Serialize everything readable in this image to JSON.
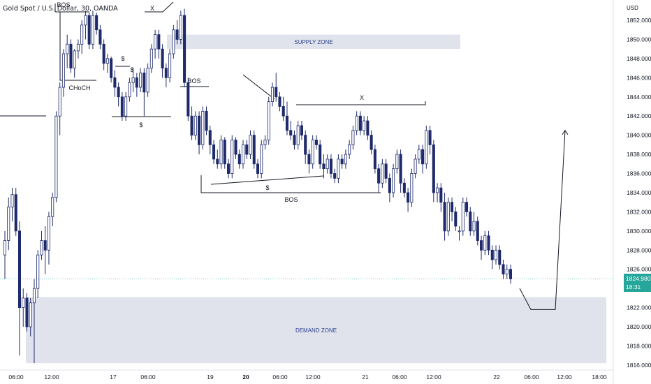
{
  "header": {
    "title": "Gold Spot / U.S. Dollar, 30, OANDA"
  },
  "price_axis": {
    "currency": "USD",
    "last_price": "1824.980",
    "countdown": "18:31"
  },
  "colors": {
    "candle": "#1e2a6b",
    "zone_fill": "#e0e3eb",
    "annotation": "#131722",
    "last_price_line": "#26a69a",
    "zone_text": "#2a3f8f"
  },
  "chart_data": {
    "type": "candlestick",
    "symbol": "Gold Spot / U.S. Dollar",
    "interval": "30",
    "y_axis": {
      "unit": "USD",
      "range": [
        1815.5,
        1853.5
      ],
      "ticks": [
        1816,
        1818,
        1820,
        1822,
        1824,
        1826,
        1828,
        1830,
        1832,
        1834,
        1836,
        1838,
        1840,
        1842,
        1844,
        1846,
        1848,
        1850,
        1852
      ]
    },
    "x_axis": {
      "tick_labels": [
        "06:00",
        "12:00",
        "17",
        "06:00",
        "19",
        "20",
        "06:00",
        "12:00",
        "21",
        "06:00",
        "12:00",
        "22",
        "06:00",
        "12:00",
        "18:00"
      ]
    },
    "zones": [
      {
        "label": "SUPPLY ZONE",
        "low": 1849.0,
        "high": 1850.5
      },
      {
        "label": "DEMAND ZONE",
        "low": 1816.2,
        "high": 1823.1
      }
    ],
    "annotations": [
      {
        "text": "BOS",
        "price": 1853.0
      },
      {
        "text": "X",
        "price": 1852.8
      },
      {
        "text": "$",
        "price": 1847.5
      },
      {
        "text": "CHoCH",
        "price": 1845.5
      },
      {
        "text": "$",
        "price": 1845.2
      },
      {
        "text": "$",
        "price": 1846.0
      },
      {
        "text": "BOS",
        "price": 1841.3
      },
      {
        "text": "X",
        "price": 1843.7
      },
      {
        "text": "$",
        "price": 1835.3
      },
      {
        "text": "BOS",
        "price": 1833.2
      }
    ],
    "projection": [
      1824.0,
      1821.8,
      1821.8,
      1840.5
    ],
    "last_price": 1824.98,
    "candles": [
      [
        1827.5,
        1830.0,
        1825.0,
        1829.0
      ],
      [
        1829.0,
        1833.5,
        1828.0,
        1832.5
      ],
      [
        1832.5,
        1834.5,
        1831.0,
        1833.8
      ],
      [
        1833.8,
        1834.5,
        1829.5,
        1830.0
      ],
      [
        1830.0,
        1831.0,
        1817.0,
        1822.0
      ],
      [
        1822.0,
        1824.0,
        1820.0,
        1823.0
      ],
      [
        1823.0,
        1823.5,
        1819.5,
        1820.0
      ],
      [
        1820.0,
        1823.0,
        1819.0,
        1822.5
      ],
      [
        1822.5,
        1825.0,
        1816.2,
        1824.0
      ],
      [
        1824.0,
        1828.0,
        1823.0,
        1827.5
      ],
      [
        1827.5,
        1830.0,
        1827.0,
        1829.0
      ],
      [
        1829.0,
        1830.5,
        1825.5,
        1828.0
      ],
      [
        1828.0,
        1832.0,
        1826.5,
        1831.5
      ],
      [
        1831.5,
        1834.0,
        1830.5,
        1833.5
      ],
      [
        1833.5,
        1842.5,
        1833.0,
        1842.0
      ],
      [
        1842.0,
        1845.5,
        1840.0,
        1845.0
      ],
      [
        1845.0,
        1849.0,
        1844.0,
        1848.5
      ],
      [
        1848.5,
        1850.5,
        1847.0,
        1849.5
      ],
      [
        1849.5,
        1850.0,
        1846.5,
        1847.0
      ],
      [
        1847.0,
        1849.0,
        1846.0,
        1848.8
      ],
      [
        1848.8,
        1850.0,
        1848.0,
        1849.5
      ],
      [
        1849.5,
        1852.0,
        1848.5,
        1851.5
      ],
      [
        1851.5,
        1853.0,
        1850.0,
        1852.5
      ],
      [
        1852.5,
        1852.8,
        1849.0,
        1849.5
      ],
      [
        1849.5,
        1853.0,
        1849.0,
        1852.5
      ],
      [
        1852.5,
        1852.8,
        1850.5,
        1851.0
      ],
      [
        1851.0,
        1851.5,
        1849.0,
        1849.5
      ],
      [
        1849.5,
        1850.0,
        1846.8,
        1847.5
      ],
      [
        1847.5,
        1848.5,
        1846.5,
        1848.0
      ],
      [
        1848.0,
        1848.2,
        1845.5,
        1846.0
      ],
      [
        1846.0,
        1846.8,
        1844.0,
        1845.0
      ],
      [
        1845.0,
        1845.5,
        1843.0,
        1844.0
      ],
      [
        1844.0,
        1844.5,
        1841.5,
        1842.0
      ],
      [
        1842.0,
        1844.5,
        1841.5,
        1844.0
      ],
      [
        1844.0,
        1846.0,
        1843.5,
        1845.5
      ],
      [
        1845.5,
        1847.0,
        1844.5,
        1846.0
      ],
      [
        1846.0,
        1846.5,
        1844.0,
        1845.0
      ],
      [
        1845.0,
        1847.0,
        1844.5,
        1846.5
      ],
      [
        1846.5,
        1847.0,
        1842.0,
        1844.5
      ],
      [
        1844.5,
        1847.5,
        1844.0,
        1847.0
      ],
      [
        1847.0,
        1849.5,
        1846.5,
        1849.0
      ],
      [
        1849.0,
        1851.0,
        1848.0,
        1850.5
      ],
      [
        1850.5,
        1851.0,
        1848.0,
        1849.0
      ],
      [
        1849.0,
        1849.5,
        1846.0,
        1847.0
      ],
      [
        1847.0,
        1847.5,
        1845.0,
        1846.0
      ],
      [
        1846.0,
        1849.0,
        1845.5,
        1848.5
      ],
      [
        1848.5,
        1851.5,
        1848.0,
        1851.0
      ],
      [
        1851.0,
        1852.0,
        1849.5,
        1850.0
      ],
      [
        1850.0,
        1853.0,
        1849.5,
        1852.5
      ],
      [
        1852.5,
        1853.2,
        1845.0,
        1845.5
      ],
      [
        1845.5,
        1846.0,
        1841.5,
        1842.0
      ],
      [
        1842.0,
        1843.0,
        1839.5,
        1840.0
      ],
      [
        1840.0,
        1842.5,
        1839.5,
        1842.0
      ],
      [
        1842.0,
        1842.5,
        1838.0,
        1839.0
      ],
      [
        1839.0,
        1843.0,
        1838.5,
        1842.5
      ],
      [
        1842.5,
        1843.0,
        1840.0,
        1840.5
      ],
      [
        1840.5,
        1841.0,
        1838.0,
        1839.0
      ],
      [
        1839.0,
        1839.5,
        1837.0,
        1837.5
      ],
      [
        1837.5,
        1838.5,
        1836.5,
        1837.0
      ],
      [
        1837.0,
        1840.0,
        1836.5,
        1839.5
      ],
      [
        1839.5,
        1839.8,
        1836.5,
        1837.0
      ],
      [
        1837.0,
        1837.5,
        1835.5,
        1836.0
      ],
      [
        1836.0,
        1840.0,
        1835.5,
        1839.5
      ],
      [
        1839.5,
        1839.8,
        1837.5,
        1838.0
      ],
      [
        1838.0,
        1838.5,
        1836.5,
        1837.0
      ],
      [
        1837.0,
        1839.5,
        1836.5,
        1839.0
      ],
      [
        1839.0,
        1839.5,
        1837.5,
        1838.0
      ],
      [
        1838.0,
        1840.5,
        1837.5,
        1840.0
      ],
      [
        1840.0,
        1840.5,
        1836.5,
        1837.0
      ],
      [
        1837.0,
        1837.5,
        1835.5,
        1836.0
      ],
      [
        1836.0,
        1839.5,
        1835.5,
        1839.0
      ],
      [
        1839.0,
        1840.0,
        1838.5,
        1839.5
      ],
      [
        1839.5,
        1844.0,
        1839.0,
        1843.5
      ],
      [
        1843.5,
        1845.5,
        1843.0,
        1845.0
      ],
      [
        1845.0,
        1846.5,
        1843.5,
        1844.0
      ],
      [
        1844.0,
        1844.5,
        1842.5,
        1843.0
      ],
      [
        1843.0,
        1844.0,
        1841.5,
        1842.0
      ],
      [
        1842.0,
        1843.5,
        1840.0,
        1840.5
      ],
      [
        1840.5,
        1841.5,
        1839.5,
        1840.0
      ],
      [
        1840.0,
        1840.5,
        1838.5,
        1839.0
      ],
      [
        1839.0,
        1841.5,
        1838.5,
        1841.0
      ],
      [
        1841.0,
        1841.5,
        1839.5,
        1840.0
      ],
      [
        1840.0,
        1840.5,
        1837.0,
        1838.0
      ],
      [
        1838.0,
        1838.5,
        1836.0,
        1837.0
      ],
      [
        1837.0,
        1840.0,
        1836.5,
        1839.5
      ],
      [
        1839.5,
        1840.0,
        1838.5,
        1839.0
      ],
      [
        1839.0,
        1839.5,
        1836.5,
        1837.0
      ],
      [
        1837.0,
        1838.0,
        1835.5,
        1836.5
      ],
      [
        1836.5,
        1838.0,
        1836.0,
        1837.5
      ],
      [
        1837.5,
        1838.0,
        1835.5,
        1836.0
      ],
      [
        1836.0,
        1836.5,
        1835.0,
        1835.5
      ],
      [
        1835.5,
        1838.0,
        1835.0,
        1837.5
      ],
      [
        1837.5,
        1838.0,
        1836.5,
        1837.0
      ],
      [
        1837.0,
        1838.5,
        1836.5,
        1838.0
      ],
      [
        1838.0,
        1839.5,
        1837.5,
        1839.0
      ],
      [
        1839.0,
        1841.0,
        1838.5,
        1840.5
      ],
      [
        1840.5,
        1842.5,
        1840.0,
        1842.0
      ],
      [
        1842.0,
        1842.5,
        1840.0,
        1840.5
      ],
      [
        1840.5,
        1842.0,
        1840.0,
        1841.5
      ],
      [
        1841.5,
        1842.0,
        1839.5,
        1840.0
      ],
      [
        1840.0,
        1840.5,
        1838.0,
        1838.5
      ],
      [
        1838.5,
        1839.0,
        1836.0,
        1836.5
      ],
      [
        1836.5,
        1837.0,
        1834.0,
        1835.0
      ],
      [
        1835.0,
        1837.5,
        1834.5,
        1837.0
      ],
      [
        1837.0,
        1837.5,
        1835.0,
        1835.5
      ],
      [
        1835.5,
        1836.0,
        1833.0,
        1834.0
      ],
      [
        1834.0,
        1837.0,
        1833.5,
        1836.5
      ],
      [
        1836.5,
        1838.5,
        1836.0,
        1838.0
      ],
      [
        1838.0,
        1838.5,
        1834.0,
        1835.0
      ],
      [
        1835.0,
        1835.5,
        1833.5,
        1834.0
      ],
      [
        1834.0,
        1834.5,
        1832.0,
        1833.0
      ],
      [
        1833.0,
        1836.5,
        1832.5,
        1836.0
      ],
      [
        1836.0,
        1838.0,
        1835.5,
        1837.5
      ],
      [
        1837.5,
        1839.0,
        1837.0,
        1838.5
      ],
      [
        1838.5,
        1839.0,
        1836.0,
        1837.0
      ],
      [
        1837.0,
        1841.0,
        1836.5,
        1840.5
      ],
      [
        1840.5,
        1841.0,
        1838.0,
        1839.0
      ],
      [
        1839.0,
        1839.5,
        1833.0,
        1834.0
      ],
      [
        1834.0,
        1835.0,
        1833.0,
        1834.5
      ],
      [
        1834.5,
        1835.0,
        1832.0,
        1833.0
      ],
      [
        1833.0,
        1834.0,
        1829.0,
        1830.0
      ],
      [
        1830.0,
        1833.5,
        1829.5,
        1833.0
      ],
      [
        1833.0,
        1833.5,
        1831.0,
        1832.0
      ],
      [
        1832.0,
        1832.5,
        1830.0,
        1830.5
      ],
      [
        1830.0,
        1830.5,
        1829.0,
        1830.0
      ],
      [
        1830.0,
        1833.5,
        1829.5,
        1833.0
      ],
      [
        1833.0,
        1833.5,
        1831.5,
        1832.0
      ],
      [
        1832.0,
        1832.5,
        1829.5,
        1830.0
      ],
      [
        1830.0,
        1832.0,
        1829.5,
        1831.0
      ],
      [
        1831.0,
        1831.5,
        1828.5,
        1829.0
      ],
      [
        1829.0,
        1829.5,
        1827.0,
        1828.0
      ],
      [
        1828.0,
        1830.0,
        1827.5,
        1829.5
      ],
      [
        1829.5,
        1830.0,
        1827.5,
        1828.0
      ],
      [
        1828.0,
        1828.5,
        1826.0,
        1827.0
      ],
      [
        1827.0,
        1828.5,
        1826.5,
        1828.0
      ],
      [
        1828.0,
        1828.5,
        1826.0,
        1826.5
      ],
      [
        1826.5,
        1827.0,
        1825.0,
        1825.5
      ],
      [
        1825.5,
        1826.5,
        1825.0,
        1826.0
      ],
      [
        1826.0,
        1826.5,
        1824.5,
        1825.0
      ]
    ]
  }
}
